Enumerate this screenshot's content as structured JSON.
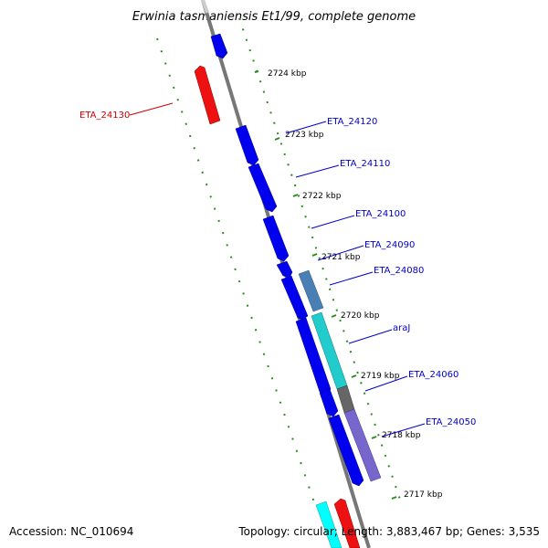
{
  "title": "Erwinia tasmaniensis Et1/99, complete genome",
  "footer": {
    "accession": "Accession: NC_010694",
    "summary": "Topology: circular; Length: 3,883,467 bp; Genes: 3,535"
  },
  "colors": {
    "backbone": "#777777",
    "tick": "#2e8b22",
    "forward_gene": "#0000ee",
    "reverse_gene": "#ee0000",
    "forward_label": "#0000cc",
    "reverse_label": "#cc0000"
  },
  "ticks": [
    {
      "label": "2724 kbp"
    },
    {
      "label": "2723 kbp"
    },
    {
      "label": "2722 kbp"
    },
    {
      "label": "2721 kbp"
    },
    {
      "label": "2720 kbp"
    },
    {
      "label": "2719 kbp"
    },
    {
      "label": "2718 kbp"
    },
    {
      "label": "2717 kbp"
    }
  ],
  "genes": [
    {
      "name": "ETA_24130",
      "strand": "reverse",
      "color": "#ee1111"
    },
    {
      "name": "ETA_24120",
      "strand": "forward",
      "color": "#0000ee"
    },
    {
      "name": "ETA_24110",
      "strand": "forward",
      "color": "#0000ee"
    },
    {
      "name": "ETA_24100",
      "strand": "forward",
      "color": "#0000ee"
    },
    {
      "name": "ETA_24090",
      "strand": "forward",
      "color": "#0000ee"
    },
    {
      "name": "ETA_24080",
      "strand": "forward",
      "color": "#4a7fb5"
    },
    {
      "name": "araJ",
      "strand": "forward",
      "color": "#22cccc"
    },
    {
      "name": "ETA_24060",
      "strand": "forward",
      "color": "#666666"
    },
    {
      "name": "ETA_24050",
      "strand": "forward",
      "color": "#7766cc"
    }
  ]
}
